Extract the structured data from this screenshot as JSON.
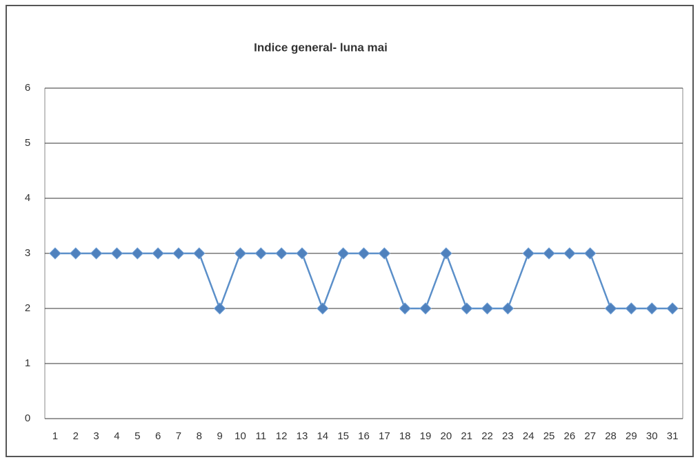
{
  "chart_data": {
    "type": "line",
    "title": "Indice general- luna mai",
    "categories": [
      "1",
      "2",
      "3",
      "4",
      "5",
      "6",
      "7",
      "8",
      "9",
      "10",
      "11",
      "12",
      "13",
      "14",
      "15",
      "16",
      "17",
      "18",
      "19",
      "20",
      "21",
      "22",
      "23",
      "24",
      "25",
      "26",
      "27",
      "28",
      "29",
      "30",
      "31"
    ],
    "series": [
      {
        "name": "Indice general",
        "color": "#4f81bd",
        "values": [
          3,
          3,
          3,
          3,
          3,
          3,
          3,
          3,
          2,
          3,
          3,
          3,
          3,
          2,
          3,
          3,
          3,
          2,
          2,
          3,
          2,
          2,
          2,
          3,
          3,
          3,
          3,
          2,
          2,
          2,
          2
        ]
      }
    ],
    "ylim": [
      0,
      6
    ],
    "yticks": [
      0,
      1,
      2,
      3,
      4,
      5,
      6
    ],
    "grid": true
  }
}
